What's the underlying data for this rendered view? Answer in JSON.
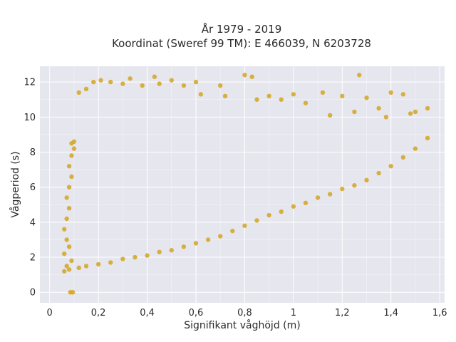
{
  "chart_data": {
    "type": "scatter",
    "title_line1": "År 1979 - 2019",
    "title_line2": "Koordinat (Sweref 99 TM): E 466039, N 6203728",
    "xlabel": "Signifikant våghöjd (m)",
    "ylabel": "Vågperiod (s)",
    "xlim": [
      -0.04,
      1.62
    ],
    "ylim": [
      -0.6,
      12.9
    ],
    "xticks": [
      0,
      0.2,
      0.4,
      0.6,
      0.8,
      1,
      1.2,
      1.4,
      1.6
    ],
    "xtick_labels": [
      "0",
      "0,2",
      "0,4",
      "0,6",
      "0,8",
      "1",
      "1,2",
      "1,4",
      "1,6"
    ],
    "yticks": [
      0,
      2,
      4,
      6,
      8,
      10,
      12
    ],
    "ytick_labels": [
      "0",
      "2",
      "4",
      "6",
      "8",
      "10",
      "12"
    ],
    "grid": true,
    "background": "#e6e6ef",
    "marker_color": "#d4a520",
    "series": [
      {
        "points": [
          [
            0.06,
            1.2
          ],
          [
            0.08,
            1.3
          ],
          [
            0.07,
            1.5
          ],
          [
            0.09,
            1.8
          ],
          [
            0.06,
            2.2
          ],
          [
            0.08,
            2.6
          ],
          [
            0.07,
            3.0
          ],
          [
            0.06,
            3.6
          ],
          [
            0.07,
            4.2
          ],
          [
            0.08,
            4.8
          ],
          [
            0.07,
            5.4
          ],
          [
            0.08,
            6.0
          ],
          [
            0.09,
            6.6
          ],
          [
            0.08,
            7.2
          ],
          [
            0.09,
            7.8
          ],
          [
            0.1,
            8.2
          ],
          [
            0.09,
            8.5
          ],
          [
            0.1,
            8.6
          ],
          [
            0.085,
            0.0
          ],
          [
            0.095,
            0.0
          ],
          [
            0.12,
            1.4
          ],
          [
            0.15,
            1.5
          ],
          [
            0.2,
            1.6
          ],
          [
            0.25,
            1.7
          ],
          [
            0.3,
            1.9
          ],
          [
            0.35,
            2.0
          ],
          [
            0.4,
            2.1
          ],
          [
            0.45,
            2.3
          ],
          [
            0.5,
            2.4
          ],
          [
            0.55,
            2.6
          ],
          [
            0.6,
            2.8
          ],
          [
            0.65,
            3.0
          ],
          [
            0.7,
            3.2
          ],
          [
            0.75,
            3.5
          ],
          [
            0.8,
            3.8
          ],
          [
            0.85,
            4.1
          ],
          [
            0.9,
            4.4
          ],
          [
            0.95,
            4.6
          ],
          [
            1.0,
            4.9
          ],
          [
            1.05,
            5.1
          ],
          [
            1.1,
            5.4
          ],
          [
            1.15,
            5.6
          ],
          [
            1.2,
            5.9
          ],
          [
            1.25,
            6.1
          ],
          [
            1.3,
            6.4
          ],
          [
            1.35,
            6.8
          ],
          [
            1.4,
            7.2
          ],
          [
            1.45,
            7.7
          ],
          [
            1.5,
            8.2
          ],
          [
            1.55,
            8.8
          ],
          [
            0.12,
            11.4
          ],
          [
            0.15,
            11.6
          ],
          [
            0.18,
            12.0
          ],
          [
            0.21,
            12.1
          ],
          [
            0.25,
            12.0
          ],
          [
            0.3,
            11.9
          ],
          [
            0.33,
            12.2
          ],
          [
            0.38,
            11.8
          ],
          [
            0.43,
            12.3
          ],
          [
            0.45,
            11.9
          ],
          [
            0.5,
            12.1
          ],
          [
            0.55,
            11.8
          ],
          [
            0.6,
            12.0
          ],
          [
            0.62,
            11.3
          ],
          [
            0.7,
            11.8
          ],
          [
            0.72,
            11.2
          ],
          [
            0.8,
            12.4
          ],
          [
            0.83,
            12.3
          ],
          [
            0.85,
            11.0
          ],
          [
            0.9,
            11.2
          ],
          [
            0.95,
            11.0
          ],
          [
            1.0,
            11.3
          ],
          [
            1.05,
            10.8
          ],
          [
            1.12,
            11.4
          ],
          [
            1.2,
            11.2
          ],
          [
            1.27,
            12.4
          ],
          [
            1.3,
            11.1
          ],
          [
            1.35,
            10.5
          ],
          [
            1.4,
            11.4
          ],
          [
            1.45,
            11.3
          ],
          [
            1.5,
            10.3
          ],
          [
            1.55,
            10.5
          ],
          [
            1.48,
            10.2
          ],
          [
            1.38,
            10.0
          ],
          [
            1.25,
            10.3
          ],
          [
            1.15,
            10.1
          ]
        ]
      }
    ]
  }
}
